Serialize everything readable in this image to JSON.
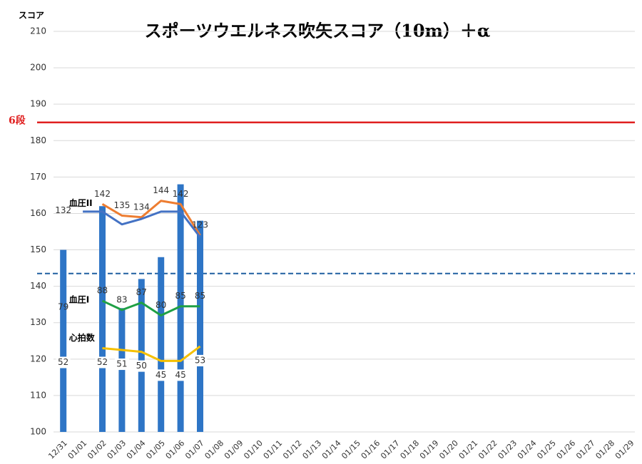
{
  "chart_data": {
    "type": "bar",
    "title": "スポーツウエルネス吹矢スコア（10m）＋α",
    "y_label": "スコア",
    "categories": [
      "12/31",
      "01/01",
      "01/02",
      "01/03",
      "01/04",
      "01/05",
      "01/06",
      "01/07",
      "01/08",
      "01/09",
      "01/10",
      "01/11",
      "01/12",
      "01/13",
      "01/14",
      "01/15",
      "01/16",
      "01/17",
      "01/18",
      "01/19",
      "01/20",
      "01/21",
      "01/22",
      "01/23",
      "01/24",
      "01/25",
      "01/26",
      "01/27",
      "01/28",
      "01/29"
    ],
    "ylim": [
      100,
      210
    ],
    "yticks": [
      100,
      110,
      120,
      130,
      140,
      150,
      160,
      170,
      180,
      190,
      200,
      210
    ],
    "grid": true,
    "series": [
      {
        "type": "bar",
        "color": "#2e75c6",
        "values": [
          150,
          null,
          162,
          134,
          142,
          148,
          168,
          158,
          null,
          null,
          null,
          null,
          null,
          null,
          null,
          null,
          null,
          null,
          null,
          null,
          null,
          null,
          null,
          null,
          null,
          null,
          null,
          null,
          null,
          null
        ]
      },
      {
        "type": "line",
        "name": "血圧II",
        "color": "#ed7d31",
        "ylim": [
          3.5,
          247
        ],
        "labels_shown": true,
        "values": [
          132,
          null,
          142,
          135,
          134,
          144,
          142,
          123,
          null,
          null,
          null,
          null,
          null,
          null,
          null,
          null,
          null,
          null,
          null,
          null,
          null,
          null,
          null,
          null,
          null,
          null,
          null,
          null,
          null,
          null
        ]
      },
      {
        "type": "line",
        "color": "#4472c4",
        "values": [
          null,
          160.5,
          160.5,
          157,
          158.5,
          160.5,
          160.5,
          153.5,
          null,
          null,
          null,
          null,
          null,
          null,
          null,
          null,
          null,
          null,
          null,
          null,
          null,
          null,
          null,
          null,
          null,
          null,
          null,
          null,
          null,
          null
        ]
      },
      {
        "type": "line",
        "name": "血圧I",
        "color": "#1fa045",
        "ylim": [
          16,
          236
        ],
        "labels_shown": true,
        "values": [
          79,
          null,
          88,
          83,
          87,
          80,
          85,
          85,
          null,
          null,
          null,
          null,
          null,
          null,
          null,
          null,
          null,
          null,
          null,
          null,
          null,
          null,
          null,
          null,
          null,
          null,
          null,
          null,
          null,
          null
        ]
      },
      {
        "type": "line",
        "name": "心拍数",
        "color": "#f5c000",
        "ylim": [
          6,
          226
        ],
        "labels_shown": true,
        "values": [
          52,
          null,
          52,
          51,
          50,
          45,
          45,
          53,
          null,
          null,
          null,
          null,
          null,
          null,
          null,
          null,
          null,
          null,
          null,
          null,
          null,
          null,
          null,
          null,
          null,
          null,
          null,
          null,
          null,
          null
        ]
      }
    ],
    "reference_lines": [
      {
        "label": "6段",
        "value": 185,
        "color": "#e02020",
        "dashed": false
      },
      {
        "value": 143.5,
        "color": "#1f5fa0",
        "dashed": true
      }
    ]
  }
}
